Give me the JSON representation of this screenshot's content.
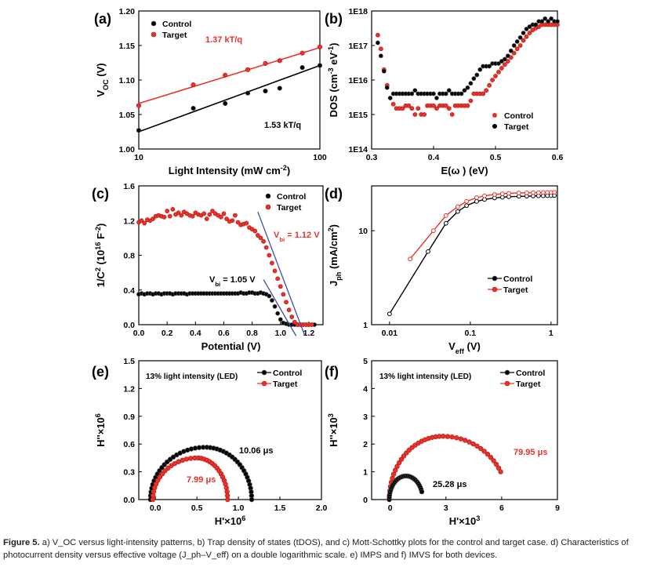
{
  "caption": {
    "label": "Figure 5.",
    "text": "a) V_OC versus light-intensity patterns, b) Trap density of states (tDOS), and c) Mott-Schottky plots for the control and target case. d) Characteristics of photocurrent density versus effective voltage (J_ph–V_eff) on a double logarithmic scale. e) IMPS and f) IMVS for both devices."
  },
  "colors": {
    "control": "#000000",
    "target": "#e8312b",
    "fit": "#3b4fa0",
    "target_text": "#e8312b"
  },
  "chart_data": [
    {
      "id": "a",
      "panel_label": "(a)",
      "type": "scatter",
      "xlabel": "Light Intensity (mW cm^-2)",
      "ylabel": "V_OC (V)",
      "xscale": "log",
      "xlim": [
        10,
        100
      ],
      "ylim": [
        1.0,
        1.2
      ],
      "xticks": [
        "10",
        "100"
      ],
      "yticks": [
        "1.00",
        "1.05",
        "1.10",
        "1.15",
        "1.20"
      ],
      "legend": [
        "Control",
        "Target"
      ],
      "legend_position": "top-left",
      "annotations": [
        {
          "text": "1.37 kT/q",
          "color": "target"
        },
        {
          "text": "1.53 kT/q",
          "color": "control"
        }
      ],
      "series": [
        {
          "name": "Control",
          "x": [
            10,
            20,
            30,
            40,
            50,
            60,
            80,
            100
          ],
          "y": [
            1.027,
            1.059,
            1.066,
            1.081,
            1.084,
            1.088,
            1.118,
            1.121
          ]
        },
        {
          "name": "Target",
          "x": [
            10,
            20,
            30,
            40,
            50,
            60,
            80,
            100
          ],
          "y": [
            1.063,
            1.093,
            1.107,
            1.115,
            1.124,
            1.128,
            1.139,
            1.148
          ]
        }
      ],
      "fits": [
        {
          "series": "Control",
          "x": [
            10,
            100
          ],
          "y": [
            1.025,
            1.121
          ]
        },
        {
          "series": "Target",
          "x": [
            10,
            100
          ],
          "y": [
            1.066,
            1.147
          ]
        }
      ]
    },
    {
      "id": "b",
      "panel_label": "(b)",
      "type": "scatter",
      "xlabel": "E(ω ) (eV)",
      "ylabel": "DOS (cm^-3 eV^-1)",
      "yscale": "log",
      "xlim": [
        0.3,
        0.6
      ],
      "ylim": [
        100000000000000.0,
        1e+18
      ],
      "xticks": [
        "0.3",
        "0.4",
        "0.5",
        "0.6"
      ],
      "yticks": [
        "1E14",
        "1E15",
        "1E16",
        "1E17",
        "1E18"
      ],
      "legend": [
        "Control",
        "Target"
      ],
      "legend_position": "bottom-right",
      "series": [
        {
          "name": "Control",
          "x": [
            0.31,
            0.315,
            0.32,
            0.325,
            0.33,
            0.335,
            0.34,
            0.345,
            0.35,
            0.355,
            0.36,
            0.365,
            0.37,
            0.375,
            0.38,
            0.385,
            0.39,
            0.395,
            0.4,
            0.405,
            0.41,
            0.415,
            0.42,
            0.425,
            0.43,
            0.435,
            0.44,
            0.445,
            0.45,
            0.455,
            0.46,
            0.465,
            0.47,
            0.475,
            0.48,
            0.485,
            0.49,
            0.495,
            0.5,
            0.505,
            0.51,
            0.515,
            0.52,
            0.525,
            0.53,
            0.535,
            0.54,
            0.545,
            0.55,
            0.555,
            0.56,
            0.565,
            0.57,
            0.575,
            0.58,
            0.585,
            0.59,
            0.595,
            0.6
          ],
          "y": [
            1.2e+17,
            5e+16,
            1.8e+16,
            6000000000000000.0,
            3000000000000000.0,
            4000000000000000.0,
            4000000000000000.0,
            4000000000000000.0,
            4000000000000000.0,
            4000000000000000.0,
            4000000000000000.0,
            4000000000000000.0,
            5000000000000000.0,
            4000000000000000.0,
            4000000000000000.0,
            4000000000000000.0,
            4000000000000000.0,
            4000000000000000.0,
            4000000000000000.0,
            3000000000000000.0,
            4000000000000000.0,
            4000000000000000.0,
            4000000000000000.0,
            5000000000000000.0,
            4000000000000000.0,
            4000000000000000.0,
            4000000000000000.0,
            4000000000000000.0,
            5000000000000000.0,
            6000000000000000.0,
            8000000000000000.0,
            1.1e+16,
            1.4e+16,
            2e+16,
            2.5e+16,
            2.5e+16,
            2.5e+16,
            3e+16,
            3e+16,
            3e+16,
            3.5e+16,
            4e+16,
            5e+16,
            7e+16,
            1e+17,
            1.3e+17,
            1.7e+17,
            2.3e+17,
            3e+17,
            3.5e+17,
            4e+17,
            4e+17,
            5e+17,
            5e+17,
            6e+17,
            5e+17,
            6e+17,
            5e+17,
            5e+17
          ]
        },
        {
          "name": "Target",
          "x": [
            0.31,
            0.315,
            0.32,
            0.325,
            0.33,
            0.335,
            0.34,
            0.345,
            0.35,
            0.355,
            0.36,
            0.365,
            0.37,
            0.375,
            0.38,
            0.385,
            0.39,
            0.395,
            0.4,
            0.405,
            0.41,
            0.415,
            0.42,
            0.425,
            0.43,
            0.435,
            0.44,
            0.445,
            0.45,
            0.455,
            0.46,
            0.465,
            0.47,
            0.475,
            0.48,
            0.485,
            0.49,
            0.495,
            0.5,
            0.505,
            0.51,
            0.515,
            0.52,
            0.525,
            0.53,
            0.535,
            0.54,
            0.545,
            0.55,
            0.555,
            0.56,
            0.565,
            0.57,
            0.575,
            0.58,
            0.585,
            0.59,
            0.595,
            0.6
          ],
          "y": [
            2e+17,
            8e+16,
            2e+16,
            7000000000000000.0,
            3000000000000000.0,
            2000000000000000.0,
            1500000000000000.0,
            1500000000000000.0,
            1500000000000000.0,
            1800000000000000.0,
            1800000000000000.0,
            1500000000000000.0,
            1000000000000000.0,
            1500000000000000.0,
            1000000000000000.0,
            1000000000000000.0,
            1800000000000000.0,
            1800000000000000.0,
            1800000000000000.0,
            1500000000000000.0,
            1800000000000000.0,
            1800000000000000.0,
            1800000000000000.0,
            1500000000000000.0,
            1000000000000000.0,
            1800000000000000.0,
            1800000000000000.0,
            1800000000000000.0,
            1800000000000000.0,
            1800000000000000.0,
            2500000000000000.0,
            4000000000000000.0,
            4000000000000000.0,
            4000000000000000.0,
            4000000000000000.0,
            5000000000000000.0,
            7000000000000000.0,
            1e+16,
            1.3e+16,
            1.7e+16,
            2.2e+16,
            2.8e+16,
            3.5e+16,
            4.5e+16,
            6e+16,
            8e+16,
            1e+17,
            1.4e+17,
            1.8e+17,
            2.3e+17,
            2.8e+17,
            3.2e+17,
            3.5e+17,
            4e+17,
            4e+17,
            4e+17,
            4e+17,
            4e+17,
            4e+17
          ]
        }
      ]
    },
    {
      "id": "c",
      "panel_label": "(c)",
      "type": "scatter",
      "xlabel": "Potential (V)",
      "ylabel": "1/C^2 (10^16 F^-2)",
      "xlim": [
        0.0,
        1.3
      ],
      "ylim": [
        0.0,
        1.6
      ],
      "xticks": [
        "0.0",
        "0.2",
        "0.4",
        "0.6",
        "0.8",
        "1.0",
        "1.2"
      ],
      "yticks": [
        "0.0",
        "0.4",
        "0.8",
        "1.2",
        "1.6"
      ],
      "legend": [
        "Control",
        "Target"
      ],
      "legend_position": "top-right",
      "annotations": [
        {
          "text": "V_bi = 1.12 V",
          "color": "target"
        },
        {
          "text": "V_bi = 1.05 V",
          "color": "control"
        }
      ],
      "series": [
        {
          "name": "Control",
          "x": [
            0.0,
            0.02,
            0.04,
            0.06,
            0.08,
            0.1,
            0.12,
            0.14,
            0.16,
            0.18,
            0.2,
            0.22,
            0.24,
            0.26,
            0.28,
            0.3,
            0.32,
            0.34,
            0.36,
            0.38,
            0.4,
            0.42,
            0.44,
            0.46,
            0.48,
            0.5,
            0.52,
            0.54,
            0.56,
            0.58,
            0.6,
            0.62,
            0.64,
            0.66,
            0.68,
            0.7,
            0.72,
            0.74,
            0.76,
            0.78,
            0.8,
            0.82,
            0.84,
            0.86,
            0.88,
            0.9,
            0.92,
            0.94,
            0.96,
            0.98,
            1.0,
            1.02,
            1.04,
            1.06,
            1.08,
            1.1,
            1.12,
            1.14,
            1.16,
            1.18,
            1.2,
            1.22,
            1.24
          ],
          "y": [
            0.35,
            0.36,
            0.35,
            0.36,
            0.36,
            0.35,
            0.36,
            0.36,
            0.35,
            0.36,
            0.36,
            0.36,
            0.35,
            0.36,
            0.36,
            0.36,
            0.36,
            0.35,
            0.36,
            0.36,
            0.36,
            0.36,
            0.36,
            0.36,
            0.36,
            0.36,
            0.36,
            0.36,
            0.36,
            0.36,
            0.36,
            0.36,
            0.36,
            0.36,
            0.36,
            0.36,
            0.37,
            0.36,
            0.36,
            0.37,
            0.37,
            0.36,
            0.36,
            0.37,
            0.36,
            0.35,
            0.33,
            0.28,
            0.21,
            0.13,
            0.06,
            0.02,
            0.01,
            0.0,
            0.0,
            0.0,
            0.0,
            0.0,
            0.0,
            0.0,
            0.0,
            0.0,
            0.0
          ]
        },
        {
          "name": "Target",
          "x": [
            0.0,
            0.02,
            0.04,
            0.06,
            0.08,
            0.1,
            0.12,
            0.14,
            0.16,
            0.18,
            0.2,
            0.22,
            0.24,
            0.26,
            0.28,
            0.3,
            0.32,
            0.34,
            0.36,
            0.38,
            0.4,
            0.42,
            0.44,
            0.46,
            0.48,
            0.5,
            0.52,
            0.54,
            0.56,
            0.58,
            0.6,
            0.62,
            0.64,
            0.66,
            0.68,
            0.7,
            0.72,
            0.74,
            0.76,
            0.78,
            0.8,
            0.82,
            0.84,
            0.86,
            0.88,
            0.9,
            0.92,
            0.94,
            0.96,
            0.98,
            1.0,
            1.02,
            1.04,
            1.06,
            1.08,
            1.1,
            1.12,
            1.14,
            1.16,
            1.18,
            1.2,
            1.22
          ],
          "y": [
            1.18,
            1.2,
            1.17,
            1.21,
            1.2,
            1.22,
            1.25,
            1.26,
            1.25,
            1.24,
            1.31,
            1.25,
            1.33,
            1.27,
            1.29,
            1.26,
            1.3,
            1.28,
            1.26,
            1.25,
            1.29,
            1.27,
            1.26,
            1.28,
            1.22,
            1.27,
            1.31,
            1.28,
            1.26,
            1.24,
            1.28,
            1.22,
            1.19,
            1.2,
            1.26,
            1.18,
            1.15,
            1.16,
            1.17,
            1.12,
            1.1,
            1.08,
            1.03,
            1.0,
            0.96,
            0.89,
            0.8,
            0.71,
            0.62,
            0.53,
            0.44,
            0.35,
            0.26,
            0.17,
            0.09,
            0.03,
            0.0,
            0.0,
            0.0,
            0.0,
            0.0,
            0.0
          ]
        }
      ],
      "fits": [
        {
          "series": "Target",
          "x": [
            0.84,
            1.17
          ],
          "y": [
            1.3,
            -0.12
          ]
        },
        {
          "series": "Control",
          "x": [
            0.88,
            1.11
          ],
          "y": [
            0.52,
            -0.13
          ]
        }
      ]
    },
    {
      "id": "d",
      "panel_label": "(d)",
      "type": "line",
      "xlabel": "V_eff (V)",
      "ylabel": "J_ph (mA/cm^2)",
      "xscale": "log",
      "yscale": "log",
      "xlim": [
        0.006,
        1.2
      ],
      "ylim": [
        1,
        30
      ],
      "xticks": [
        "0.01",
        "0.1",
        "1"
      ],
      "yticks": [
        "1",
        "10"
      ],
      "legend": [
        "Control",
        "Target"
      ],
      "legend_position": "center-right",
      "series": [
        {
          "name": "Control",
          "x": [
            0.01,
            0.03,
            0.05,
            0.07,
            0.09,
            0.12,
            0.15,
            0.2,
            0.25,
            0.3,
            0.4,
            0.5,
            0.6,
            0.7,
            0.8,
            0.9,
            1.0,
            1.1
          ],
          "y": [
            1.3,
            6.0,
            12.0,
            16.0,
            18.5,
            20.5,
            21.5,
            22.3,
            22.7,
            23.0,
            23.2,
            23.3,
            23.4,
            23.5,
            23.5,
            23.6,
            23.6,
            23.7
          ]
        },
        {
          "name": "Target",
          "x": [
            0.018,
            0.035,
            0.05,
            0.07,
            0.09,
            0.12,
            0.15,
            0.2,
            0.25,
            0.3,
            0.4,
            0.5,
            0.6,
            0.7,
            0.8,
            0.9,
            1.0,
            1.1
          ],
          "y": [
            5.0,
            10.0,
            14.5,
            18.0,
            20.5,
            22.5,
            23.5,
            24.3,
            24.7,
            25.0,
            25.2,
            25.3,
            25.4,
            25.4,
            25.5,
            25.5,
            25.5,
            25.6
          ]
        }
      ]
    },
    {
      "id": "e",
      "panel_label": "(e)",
      "type": "scatter",
      "xlabel": "H'×10^6",
      "ylabel": "H''×10^6",
      "xlim": [
        -0.2,
        2.0
      ],
      "ylim": [
        0.0,
        1.5
      ],
      "xticks": [
        "0.0",
        "0.5",
        "1.0",
        "1.5",
        "2.0"
      ],
      "yticks": [
        "0.0",
        "0.3",
        "0.6",
        "0.9",
        "1.2",
        "1.5"
      ],
      "legend": [
        "Control",
        "Target"
      ],
      "legend_position": "top-right",
      "annotations": [
        {
          "text": "13% light intensity (LED)",
          "color": "control"
        },
        {
          "text": "10.06 μs",
          "color": "control"
        },
        {
          "text": "7.99 μs",
          "color": "target"
        }
      ],
      "arcs": [
        {
          "series": "Control",
          "x0": -0.06,
          "x1": 1.16,
          "xpeak": 0.6,
          "ypeak": 0.565,
          "n": 44
        },
        {
          "series": "Target",
          "x0": -0.03,
          "x1": 0.87,
          "xpeak": 0.5,
          "ypeak": 0.45,
          "n": 34
        }
      ]
    },
    {
      "id": "f",
      "panel_label": "(f)",
      "type": "scatter",
      "xlabel": "H'×10^3",
      "ylabel": "H''×10^3",
      "xlim": [
        -1,
        9
      ],
      "ylim": [
        0,
        5
      ],
      "xticks": [
        "0",
        "3",
        "6",
        "9"
      ],
      "yticks": [
        "0",
        "1",
        "2",
        "3",
        "4",
        "5"
      ],
      "legend": [
        "Control",
        "Target"
      ],
      "legend_position": "top-right",
      "annotations": [
        {
          "text": "13% light intensity (LED)",
          "color": "control"
        },
        {
          "text": "79.95 μs",
          "color": "target"
        },
        {
          "text": "25.28 μs",
          "color": "control"
        }
      ],
      "arcs": [
        {
          "series": "Target",
          "x0": -0.05,
          "x1": 6.3,
          "xpeak": 2.8,
          "ypeak": 2.28,
          "endy": 1.0,
          "n": 40
        },
        {
          "series": "Control",
          "x0": -0.05,
          "x1": 1.75,
          "xpeak": 0.85,
          "ypeak": 0.85,
          "endy": 0.28,
          "n": 28
        }
      ]
    }
  ]
}
